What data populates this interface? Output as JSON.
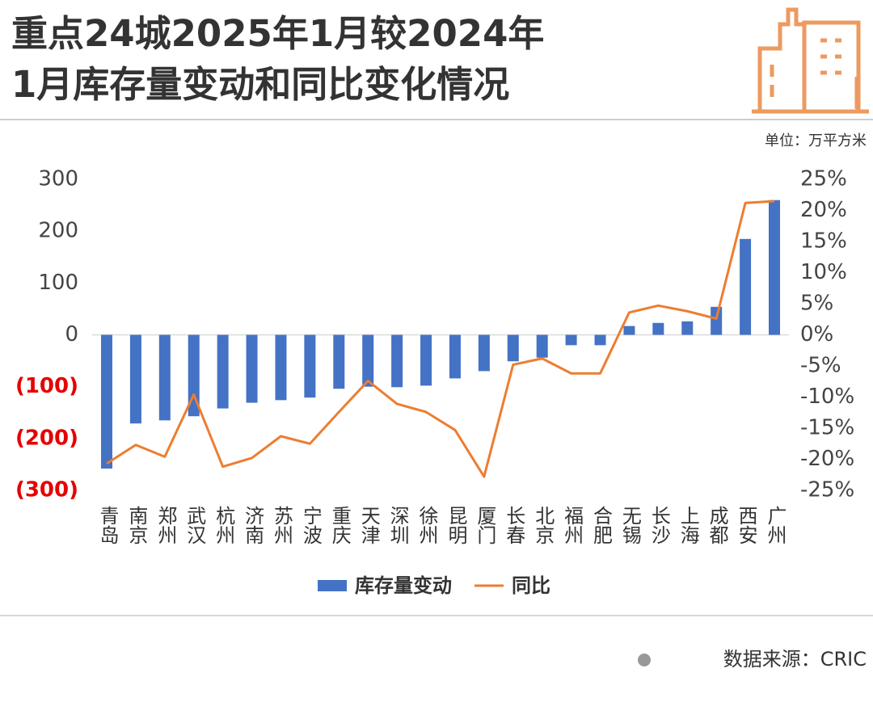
{
  "chart_data": {
    "type": "bar",
    "title": [
      "重点24城2025年1月较2024年",
      "1月库存量变动和同比变化情况"
    ],
    "unit": "单位：万平方米",
    "source": "数据来源：CRIC",
    "categories": [
      "青岛",
      "南京",
      "郑州",
      "武汉",
      "杭州",
      "济南",
      "苏州",
      "宁波",
      "重庆",
      "天津",
      "深圳",
      "徐州",
      "昆明",
      "厦门",
      "长春",
      "北京",
      "福州",
      "合肥",
      "无锡",
      "长沙",
      "上海",
      "成都",
      "西安",
      "广州"
    ],
    "series": [
      {
        "name": "库存量变动",
        "type": "bar",
        "color": "#4472c4",
        "values": [
          -258,
          -171,
          -165,
          -157,
          -142,
          -131,
          -126,
          -121,
          -104,
          -100,
          -101,
          -98,
          -84,
          -70,
          -51,
          -44,
          -20,
          -20,
          17,
          23,
          26,
          54,
          185,
          260
        ]
      },
      {
        "name": "同比",
        "type": "line",
        "axis": "y2",
        "color": "#ed7d31",
        "values": [
          -20.7,
          -17.7,
          -19.6,
          -9.6,
          -21.2,
          -19.8,
          -16.3,
          -17.5,
          -12.4,
          -7.4,
          -11.1,
          -12.4,
          -15.3,
          -22.8,
          -4.8,
          -3.8,
          -6.2,
          -6.2,
          3.6,
          4.7,
          3.8,
          2.6,
          21.2,
          21.5
        ]
      }
    ],
    "ylim": [
      -300,
      300
    ],
    "yticks": [
      300,
      200,
      100,
      0,
      {
        "value": -100,
        "label": "(100)"
      },
      {
        "value": -200,
        "label": "(200)"
      },
      {
        "value": -300,
        "label": "(300)"
      }
    ],
    "negative_tick_color": "#e60000",
    "y2lim": [
      -25,
      25
    ],
    "y2ticks": [
      {
        "value": 25,
        "label": "25%"
      },
      {
        "value": 20,
        "label": "20%"
      },
      {
        "value": 15,
        "label": "15%"
      },
      {
        "value": 10,
        "label": "10%"
      },
      {
        "value": 5,
        "label": "5%"
      },
      {
        "value": 0,
        "label": "0%"
      },
      {
        "value": -5,
        "label": "-5%"
      },
      {
        "value": -10,
        "label": "-10%"
      },
      {
        "value": -15,
        "label": "-15%"
      },
      {
        "value": -20,
        "label": "-20%"
      },
      {
        "value": -25,
        "label": "-25%"
      }
    ]
  }
}
